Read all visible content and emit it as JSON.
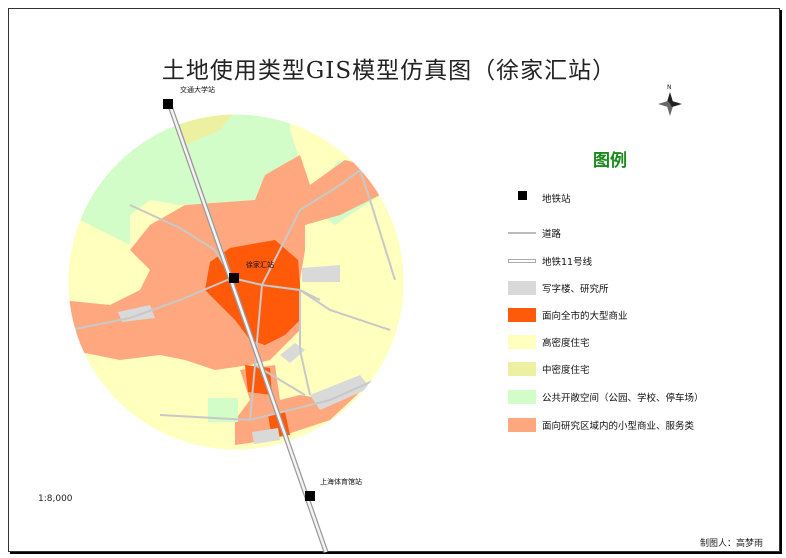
{
  "map": {
    "title": "土地使用类型GIS模型仿真图（徐家汇站）",
    "scale": "1:8,000",
    "credit": "制图人：高梦雨",
    "north_label": "N",
    "stations": [
      {
        "label": "交通大学站"
      },
      {
        "label": "徐家汇站"
      },
      {
        "label": "上海体育馆站"
      }
    ]
  },
  "legend": {
    "title": "图例",
    "items": [
      {
        "label": "地铁站",
        "kind": "metro",
        "color": "#000000"
      },
      {
        "label": "道路",
        "kind": "road",
        "color": "#bbbbbb"
      },
      {
        "label": "地铁11号线",
        "kind": "line",
        "color": "#aaaaaa"
      },
      {
        "label": "写字楼、研究所",
        "kind": "fill",
        "color": "#d9d9d9"
      },
      {
        "label": "面向全市的大型商业",
        "kind": "fill",
        "color": "#ff5a0a"
      },
      {
        "label": "高密度住宅",
        "kind": "fill",
        "color": "#ffffbe"
      },
      {
        "label": "中密度住宅",
        "kind": "fill",
        "color": "#ecf0a0"
      },
      {
        "label": "公共开敞空间（公园、学校、停车场）",
        "kind": "fill",
        "color": "#d2fcc8"
      },
      {
        "label": "面向研究区域内的小型商业、服务类",
        "kind": "fill",
        "color": "#ffa77f"
      }
    ]
  }
}
